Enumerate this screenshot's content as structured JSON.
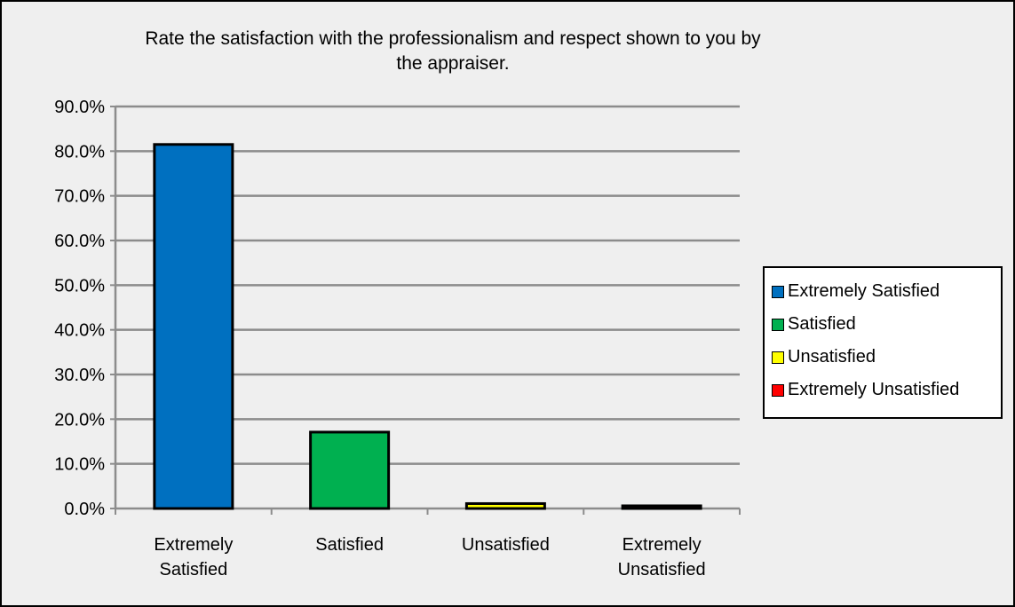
{
  "chart_data": {
    "type": "bar",
    "title_lines": [
      "Rate the satisfaction with the professionalism and respect shown to you by",
      "the appraiser."
    ],
    "categories": [
      "Extremely Satisfied",
      "Satisfied",
      "Unsatisfied",
      "Extremely Unsatisfied"
    ],
    "category_label_lines": [
      [
        "Extremely",
        "Satisfied"
      ],
      [
        "Satisfied"
      ],
      [
        "Unsatisfied"
      ],
      [
        "Extremely",
        "Unsatisfied"
      ]
    ],
    "values": [
      81.5,
      17.1,
      1.1,
      0.6
    ],
    "colors": [
      "#0070c0",
      "#00b050",
      "#ffff00",
      "#ff0000"
    ],
    "ylim": [
      0,
      90
    ],
    "yticks": [
      "0.0%",
      "10.0%",
      "20.0%",
      "30.0%",
      "40.0%",
      "50.0%",
      "60.0%",
      "70.0%",
      "80.0%",
      "90.0%"
    ],
    "grid": true,
    "legend_position": "right",
    "legend": [
      "Extremely Satisfied",
      "Satisfied",
      "Unsatisfied",
      "Extremely Unsatisfied"
    ],
    "xlabel": "",
    "ylabel": ""
  }
}
